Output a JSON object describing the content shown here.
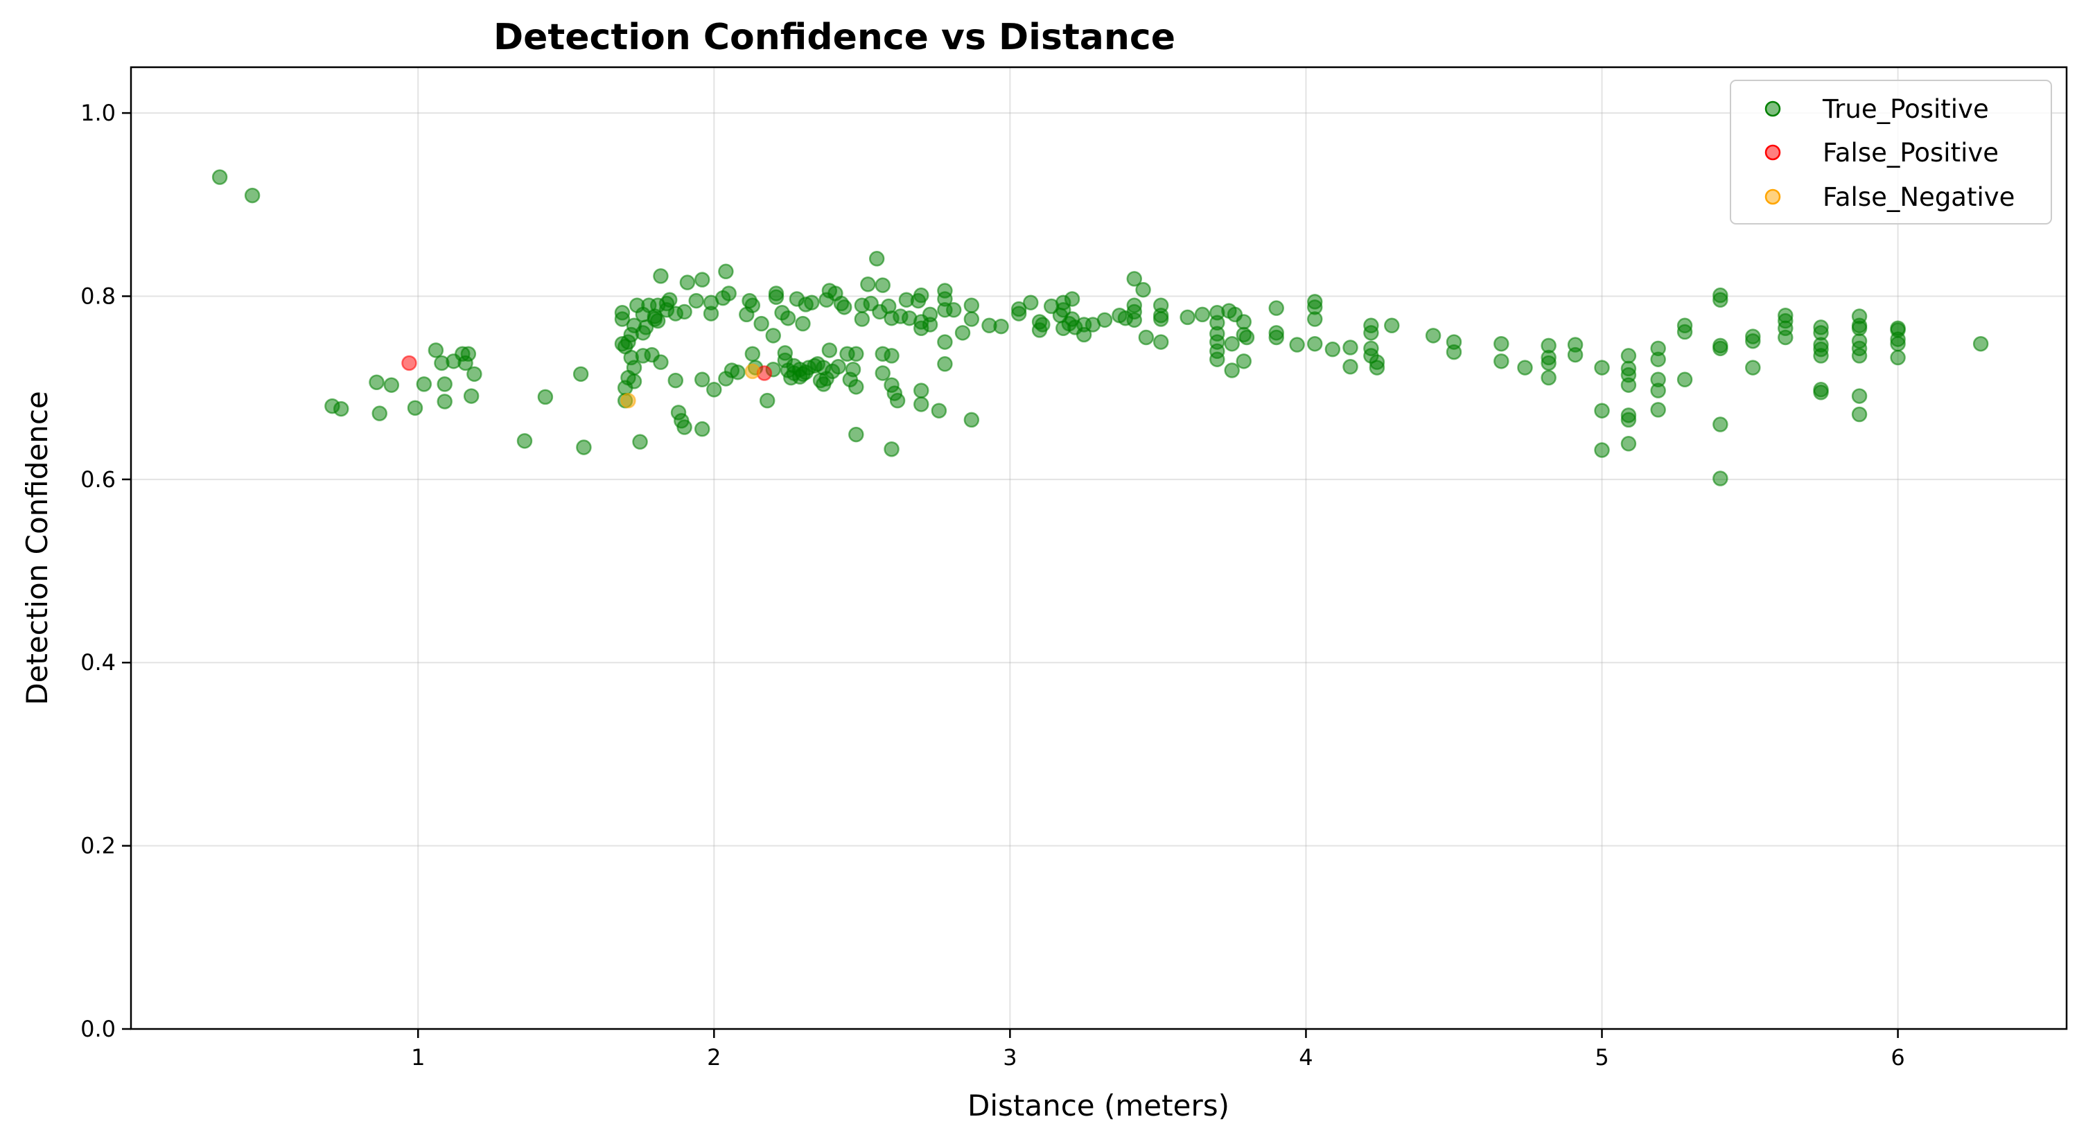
{
  "chart_data": {
    "type": "scatter",
    "title": "Detection Confidence vs Distance",
    "xlabel": "Distance (meters)",
    "ylabel": "Detection Confidence",
    "xlim": [
      0.03,
      6.57
    ],
    "ylim": [
      0.0,
      1.05
    ],
    "xticks": [
      1,
      2,
      3,
      4,
      5,
      6
    ],
    "yticks": [
      0.0,
      0.2,
      0.4,
      0.6,
      0.8,
      1.0
    ],
    "xtick_labels": [
      "1",
      "2",
      "3",
      "4",
      "5",
      "6"
    ],
    "ytick_labels": [
      "0.0",
      "0.2",
      "0.4",
      "0.6",
      "0.8",
      "1.0"
    ],
    "grid": true,
    "legend_position": "top-right",
    "series": [
      {
        "name": "True_Positive",
        "color": "#008000",
        "points": [
          [
            0.33,
            0.93
          ],
          [
            0.44,
            0.91
          ],
          [
            0.71,
            0.68
          ],
          [
            0.74,
            0.677
          ],
          [
            0.86,
            0.706
          ],
          [
            0.87,
            0.672
          ],
          [
            0.91,
            0.703
          ],
          [
            0.99,
            0.678
          ],
          [
            1.02,
            0.704
          ],
          [
            1.06,
            0.741
          ],
          [
            1.08,
            0.727
          ],
          [
            1.09,
            0.704
          ],
          [
            1.09,
            0.685
          ],
          [
            1.12,
            0.729
          ],
          [
            1.15,
            0.737
          ],
          [
            1.16,
            0.727
          ],
          [
            1.17,
            0.737
          ],
          [
            1.18,
            0.691
          ],
          [
            1.19,
            0.715
          ],
          [
            1.36,
            0.642
          ],
          [
            1.43,
            0.69
          ],
          [
            1.55,
            0.715
          ],
          [
            1.56,
            0.635
          ],
          [
            1.69,
            0.782
          ],
          [
            1.69,
            0.775
          ],
          [
            1.69,
            0.748
          ],
          [
            1.7,
            0.745
          ],
          [
            1.7,
            0.7
          ],
          [
            1.7,
            0.686
          ],
          [
            1.71,
            0.75
          ],
          [
            1.71,
            0.711
          ],
          [
            1.72,
            0.758
          ],
          [
            1.72,
            0.733
          ],
          [
            1.73,
            0.768
          ],
          [
            1.73,
            0.722
          ],
          [
            1.73,
            0.707
          ],
          [
            1.74,
            0.79
          ],
          [
            1.75,
            0.641
          ],
          [
            1.76,
            0.78
          ],
          [
            1.76,
            0.76
          ],
          [
            1.76,
            0.735
          ],
          [
            1.77,
            0.766
          ],
          [
            1.78,
            0.79
          ],
          [
            1.79,
            0.736
          ],
          [
            1.8,
            0.775
          ],
          [
            1.8,
            0.778
          ],
          [
            1.81,
            0.773
          ],
          [
            1.81,
            0.79
          ],
          [
            1.82,
            0.822
          ],
          [
            1.82,
            0.728
          ],
          [
            1.84,
            0.785
          ],
          [
            1.84,
            0.792
          ],
          [
            1.85,
            0.796
          ],
          [
            1.87,
            0.781
          ],
          [
            1.87,
            0.708
          ],
          [
            1.88,
            0.673
          ],
          [
            1.89,
            0.664
          ],
          [
            1.9,
            0.657
          ],
          [
            1.9,
            0.783
          ],
          [
            1.91,
            0.815
          ],
          [
            1.94,
            0.795
          ],
          [
            1.96,
            0.818
          ],
          [
            1.96,
            0.709
          ],
          [
            1.96,
            0.655
          ],
          [
            1.99,
            0.781
          ],
          [
            1.99,
            0.793
          ],
          [
            2.0,
            0.698
          ],
          [
            2.03,
            0.798
          ],
          [
            2.04,
            0.827
          ],
          [
            2.04,
            0.71
          ],
          [
            2.05,
            0.803
          ],
          [
            2.06,
            0.719
          ],
          [
            2.08,
            0.717
          ],
          [
            2.11,
            0.78
          ],
          [
            2.12,
            0.795
          ],
          [
            2.13,
            0.79
          ],
          [
            2.13,
            0.737
          ],
          [
            2.14,
            0.722
          ],
          [
            2.16,
            0.77
          ],
          [
            2.18,
            0.686
          ],
          [
            2.2,
            0.757
          ],
          [
            2.2,
            0.72
          ],
          [
            2.21,
            0.803
          ],
          [
            2.21,
            0.799
          ],
          [
            2.23,
            0.782
          ],
          [
            2.24,
            0.738
          ],
          [
            2.24,
            0.73
          ],
          [
            2.25,
            0.776
          ],
          [
            2.25,
            0.719
          ],
          [
            2.26,
            0.711
          ],
          [
            2.27,
            0.724
          ],
          [
            2.27,
            0.716
          ],
          [
            2.28,
            0.797
          ],
          [
            2.29,
            0.72
          ],
          [
            2.29,
            0.712
          ],
          [
            2.3,
            0.77
          ],
          [
            2.3,
            0.715
          ],
          [
            2.31,
            0.791
          ],
          [
            2.31,
            0.717
          ],
          [
            2.32,
            0.722
          ],
          [
            2.33,
            0.793
          ],
          [
            2.34,
            0.724
          ],
          [
            2.35,
            0.726
          ],
          [
            2.36,
            0.708
          ],
          [
            2.37,
            0.722
          ],
          [
            2.37,
            0.704
          ],
          [
            2.38,
            0.796
          ],
          [
            2.38,
            0.71
          ],
          [
            2.39,
            0.806
          ],
          [
            2.39,
            0.741
          ],
          [
            2.4,
            0.718
          ],
          [
            2.41,
            0.803
          ],
          [
            2.42,
            0.723
          ],
          [
            2.43,
            0.792
          ],
          [
            2.44,
            0.788
          ],
          [
            2.45,
            0.737
          ],
          [
            2.46,
            0.709
          ],
          [
            2.47,
            0.72
          ],
          [
            2.48,
            0.649
          ],
          [
            2.48,
            0.737
          ],
          [
            2.48,
            0.701
          ],
          [
            2.5,
            0.775
          ],
          [
            2.5,
            0.79
          ],
          [
            2.52,
            0.813
          ],
          [
            2.53,
            0.792
          ],
          [
            2.55,
            0.841
          ],
          [
            2.56,
            0.783
          ],
          [
            2.57,
            0.812
          ],
          [
            2.57,
            0.737
          ],
          [
            2.57,
            0.716
          ],
          [
            2.59,
            0.789
          ],
          [
            2.6,
            0.776
          ],
          [
            2.6,
            0.735
          ],
          [
            2.6,
            0.703
          ],
          [
            2.6,
            0.633
          ],
          [
            2.61,
            0.694
          ],
          [
            2.62,
            0.686
          ],
          [
            2.63,
            0.778
          ],
          [
            2.65,
            0.796
          ],
          [
            2.66,
            0.776
          ],
          [
            2.69,
            0.795
          ],
          [
            2.7,
            0.801
          ],
          [
            2.7,
            0.772
          ],
          [
            2.7,
            0.765
          ],
          [
            2.7,
            0.697
          ],
          [
            2.7,
            0.682
          ],
          [
            2.73,
            0.78
          ],
          [
            2.73,
            0.769
          ],
          [
            2.76,
            0.675
          ],
          [
            2.78,
            0.806
          ],
          [
            2.78,
            0.797
          ],
          [
            2.78,
            0.785
          ],
          [
            2.78,
            0.75
          ],
          [
            2.78,
            0.726
          ],
          [
            2.81,
            0.785
          ],
          [
            2.84,
            0.76
          ],
          [
            2.87,
            0.79
          ],
          [
            2.87,
            0.775
          ],
          [
            2.87,
            0.665
          ],
          [
            2.93,
            0.768
          ],
          [
            2.97,
            0.767
          ],
          [
            3.03,
            0.786
          ],
          [
            3.03,
            0.781
          ],
          [
            3.07,
            0.793
          ],
          [
            3.1,
            0.772
          ],
          [
            3.1,
            0.763
          ],
          [
            3.11,
            0.769
          ],
          [
            3.14,
            0.789
          ],
          [
            3.17,
            0.779
          ],
          [
            3.18,
            0.793
          ],
          [
            3.18,
            0.785
          ],
          [
            3.18,
            0.765
          ],
          [
            3.2,
            0.77
          ],
          [
            3.21,
            0.797
          ],
          [
            3.21,
            0.775
          ],
          [
            3.22,
            0.766
          ],
          [
            3.25,
            0.758
          ],
          [
            3.25,
            0.769
          ],
          [
            3.28,
            0.769
          ],
          [
            3.32,
            0.774
          ],
          [
            3.37,
            0.779
          ],
          [
            3.39,
            0.776
          ],
          [
            3.42,
            0.819
          ],
          [
            3.42,
            0.79
          ],
          [
            3.42,
            0.783
          ],
          [
            3.42,
            0.774
          ],
          [
            3.45,
            0.807
          ],
          [
            3.46,
            0.755
          ],
          [
            3.51,
            0.79
          ],
          [
            3.51,
            0.779
          ],
          [
            3.51,
            0.775
          ],
          [
            3.51,
            0.75
          ],
          [
            3.6,
            0.777
          ],
          [
            3.65,
            0.78
          ],
          [
            3.7,
            0.782
          ],
          [
            3.7,
            0.771
          ],
          [
            3.7,
            0.759
          ],
          [
            3.7,
            0.75
          ],
          [
            3.7,
            0.74
          ],
          [
            3.7,
            0.731
          ],
          [
            3.74,
            0.784
          ],
          [
            3.75,
            0.719
          ],
          [
            3.75,
            0.748
          ],
          [
            3.76,
            0.78
          ],
          [
            3.79,
            0.772
          ],
          [
            3.79,
            0.758
          ],
          [
            3.79,
            0.729
          ],
          [
            3.8,
            0.755
          ],
          [
            3.9,
            0.787
          ],
          [
            3.9,
            0.76
          ],
          [
            3.9,
            0.755
          ],
          [
            3.97,
            0.747
          ],
          [
            4.03,
            0.794
          ],
          [
            4.03,
            0.788
          ],
          [
            4.03,
            0.775
          ],
          [
            4.03,
            0.748
          ],
          [
            4.09,
            0.742
          ],
          [
            4.15,
            0.744
          ],
          [
            4.15,
            0.723
          ],
          [
            4.22,
            0.768
          ],
          [
            4.22,
            0.76
          ],
          [
            4.22,
            0.743
          ],
          [
            4.22,
            0.735
          ],
          [
            4.24,
            0.728
          ],
          [
            4.24,
            0.722
          ],
          [
            4.29,
            0.768
          ],
          [
            4.43,
            0.757
          ],
          [
            4.5,
            0.75
          ],
          [
            4.5,
            0.739
          ],
          [
            4.66,
            0.748
          ],
          [
            4.66,
            0.729
          ],
          [
            4.74,
            0.722
          ],
          [
            4.82,
            0.746
          ],
          [
            4.82,
            0.733
          ],
          [
            4.82,
            0.727
          ],
          [
            4.82,
            0.711
          ],
          [
            4.91,
            0.747
          ],
          [
            4.91,
            0.736
          ],
          [
            5.0,
            0.722
          ],
          [
            5.0,
            0.675
          ],
          [
            5.0,
            0.632
          ],
          [
            5.09,
            0.735
          ],
          [
            5.09,
            0.721
          ],
          [
            5.09,
            0.714
          ],
          [
            5.09,
            0.703
          ],
          [
            5.09,
            0.67
          ],
          [
            5.09,
            0.665
          ],
          [
            5.09,
            0.639
          ],
          [
            5.19,
            0.743
          ],
          [
            5.19,
            0.731
          ],
          [
            5.19,
            0.709
          ],
          [
            5.19,
            0.697
          ],
          [
            5.19,
            0.676
          ],
          [
            5.28,
            0.768
          ],
          [
            5.28,
            0.761
          ],
          [
            5.28,
            0.709
          ],
          [
            5.4,
            0.801
          ],
          [
            5.4,
            0.796
          ],
          [
            5.4,
            0.746
          ],
          [
            5.4,
            0.743
          ],
          [
            5.4,
            0.66
          ],
          [
            5.4,
            0.601
          ],
          [
            5.51,
            0.756
          ],
          [
            5.51,
            0.751
          ],
          [
            5.51,
            0.722
          ],
          [
            5.62,
            0.779
          ],
          [
            5.62,
            0.773
          ],
          [
            5.62,
            0.765
          ],
          [
            5.62,
            0.755
          ],
          [
            5.74,
            0.766
          ],
          [
            5.74,
            0.76
          ],
          [
            5.74,
            0.747
          ],
          [
            5.74,
            0.742
          ],
          [
            5.74,
            0.735
          ],
          [
            5.74,
            0.698
          ],
          [
            5.74,
            0.695
          ],
          [
            5.87,
            0.778
          ],
          [
            5.87,
            0.768
          ],
          [
            5.87,
            0.765
          ],
          [
            5.87,
            0.751
          ],
          [
            5.87,
            0.743
          ],
          [
            5.87,
            0.735
          ],
          [
            5.87,
            0.691
          ],
          [
            5.87,
            0.671
          ],
          [
            6.0,
            0.765
          ],
          [
            6.0,
            0.763
          ],
          [
            6.0,
            0.753
          ],
          [
            6.0,
            0.748
          ],
          [
            6.0,
            0.733
          ],
          [
            6.28,
            0.748
          ]
        ]
      },
      {
        "name": "False_Positive",
        "color": "#ff0000",
        "points": [
          [
            0.97,
            0.727
          ],
          [
            2.17,
            0.716
          ]
        ]
      },
      {
        "name": "False_Negative",
        "color": "#ffa500",
        "points": [
          [
            1.71,
            0.686
          ],
          [
            2.13,
            0.718
          ]
        ]
      }
    ]
  }
}
